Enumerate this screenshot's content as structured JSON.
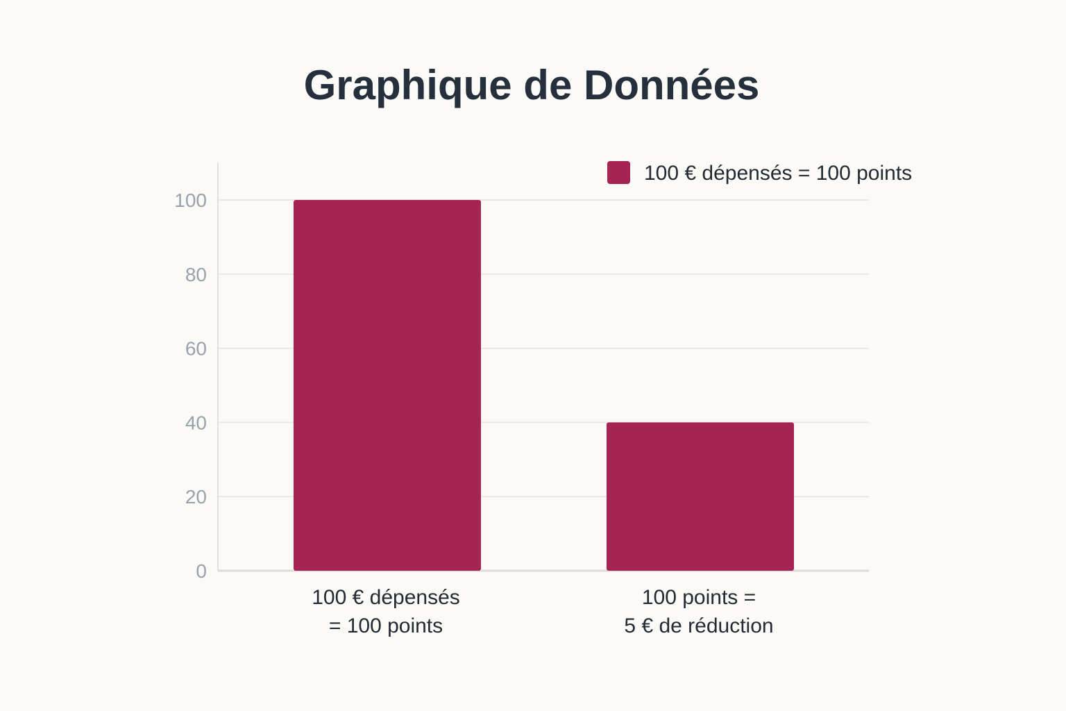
{
  "chart_data": {
    "type": "bar",
    "title": "Graphique de Données",
    "categories": [
      [
        "100 € dépensés",
        "= 100 points"
      ],
      [
        "100 points =",
        "5 € de réduction"
      ]
    ],
    "series": [
      {
        "name": "100 € dépensés = 100 points",
        "values": [
          100,
          40
        ],
        "color": "#a52454"
      }
    ],
    "ylim": [
      0,
      110
    ],
    "yticks": [
      "0",
      "20",
      "40",
      "60",
      "80",
      "100"
    ],
    "xlabel": "",
    "ylabel": "",
    "grid": true,
    "legend_position": "top-right"
  }
}
